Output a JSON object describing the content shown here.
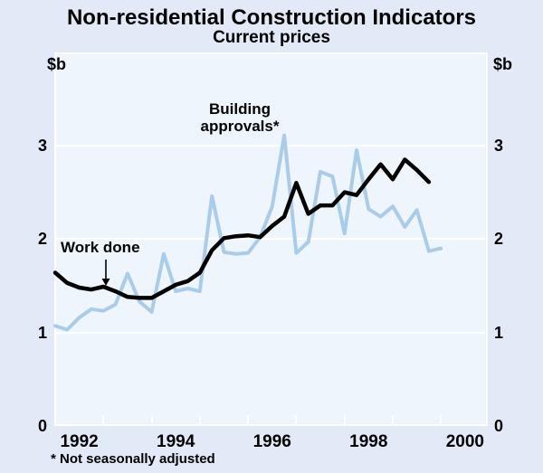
{
  "header": {
    "title": "Non-residential Construction Indicators",
    "subtitle": "Current prices"
  },
  "axes": {
    "unit_left": "$b",
    "unit_right": "$b",
    "yticks": [
      "0",
      "1",
      "2",
      "3"
    ],
    "xticklabels": [
      "1992",
      "1994",
      "1996",
      "1998",
      "2000"
    ]
  },
  "annotations": {
    "building_line1": "Building",
    "building_line2": "approvals*",
    "work_done": "Work done"
  },
  "footnote": "* Not seasonally adjusted",
  "colors": {
    "page_background": "#e1eaf6",
    "plot_background": "#eff5fc",
    "grid_white": "#ffffff",
    "work_done_line": "#000000",
    "building_approvals_line": "#a8cdec"
  },
  "chart_data": {
    "type": "line",
    "title": "Non-residential Construction Indicators",
    "subtitle": "Current prices",
    "ylabel": "$b",
    "ylim": [
      0,
      4
    ],
    "yticks": [
      0,
      1,
      2,
      3
    ],
    "x_start": "1992Q1",
    "x_frequency": "quarterly",
    "x_range_years": [
      1992,
      2001
    ],
    "xticklabels": [
      "1992",
      "1994",
      "1996",
      "1998",
      "2000"
    ],
    "grid": "horizontal white gridlines at 1, 2, 3",
    "legend": "inline text annotations",
    "series": [
      {
        "name": "Work done",
        "color": "#000000",
        "values": [
          1.64,
          1.53,
          1.48,
          1.46,
          1.49,
          1.44,
          1.38,
          1.37,
          1.37,
          1.44,
          1.51,
          1.55,
          1.64,
          1.88,
          2.01,
          2.03,
          2.04,
          2.02,
          2.14,
          2.24,
          2.6,
          2.27,
          2.36,
          2.36,
          2.5,
          2.47,
          2.64,
          2.8,
          2.64,
          2.85,
          2.74,
          2.61
        ]
      },
      {
        "name": "Building approvals (not seasonally adjusted)",
        "color": "#a8cdec",
        "values": [
          1.07,
          1.03,
          1.16,
          1.25,
          1.23,
          1.3,
          1.63,
          1.33,
          1.22,
          1.84,
          1.44,
          1.47,
          1.44,
          2.46,
          1.86,
          1.84,
          1.85,
          2.02,
          2.35,
          3.11,
          1.85,
          1.97,
          2.72,
          2.67,
          2.06,
          2.95,
          2.32,
          2.24,
          2.35,
          2.13,
          2.31,
          1.87,
          1.9
        ]
      }
    ]
  }
}
